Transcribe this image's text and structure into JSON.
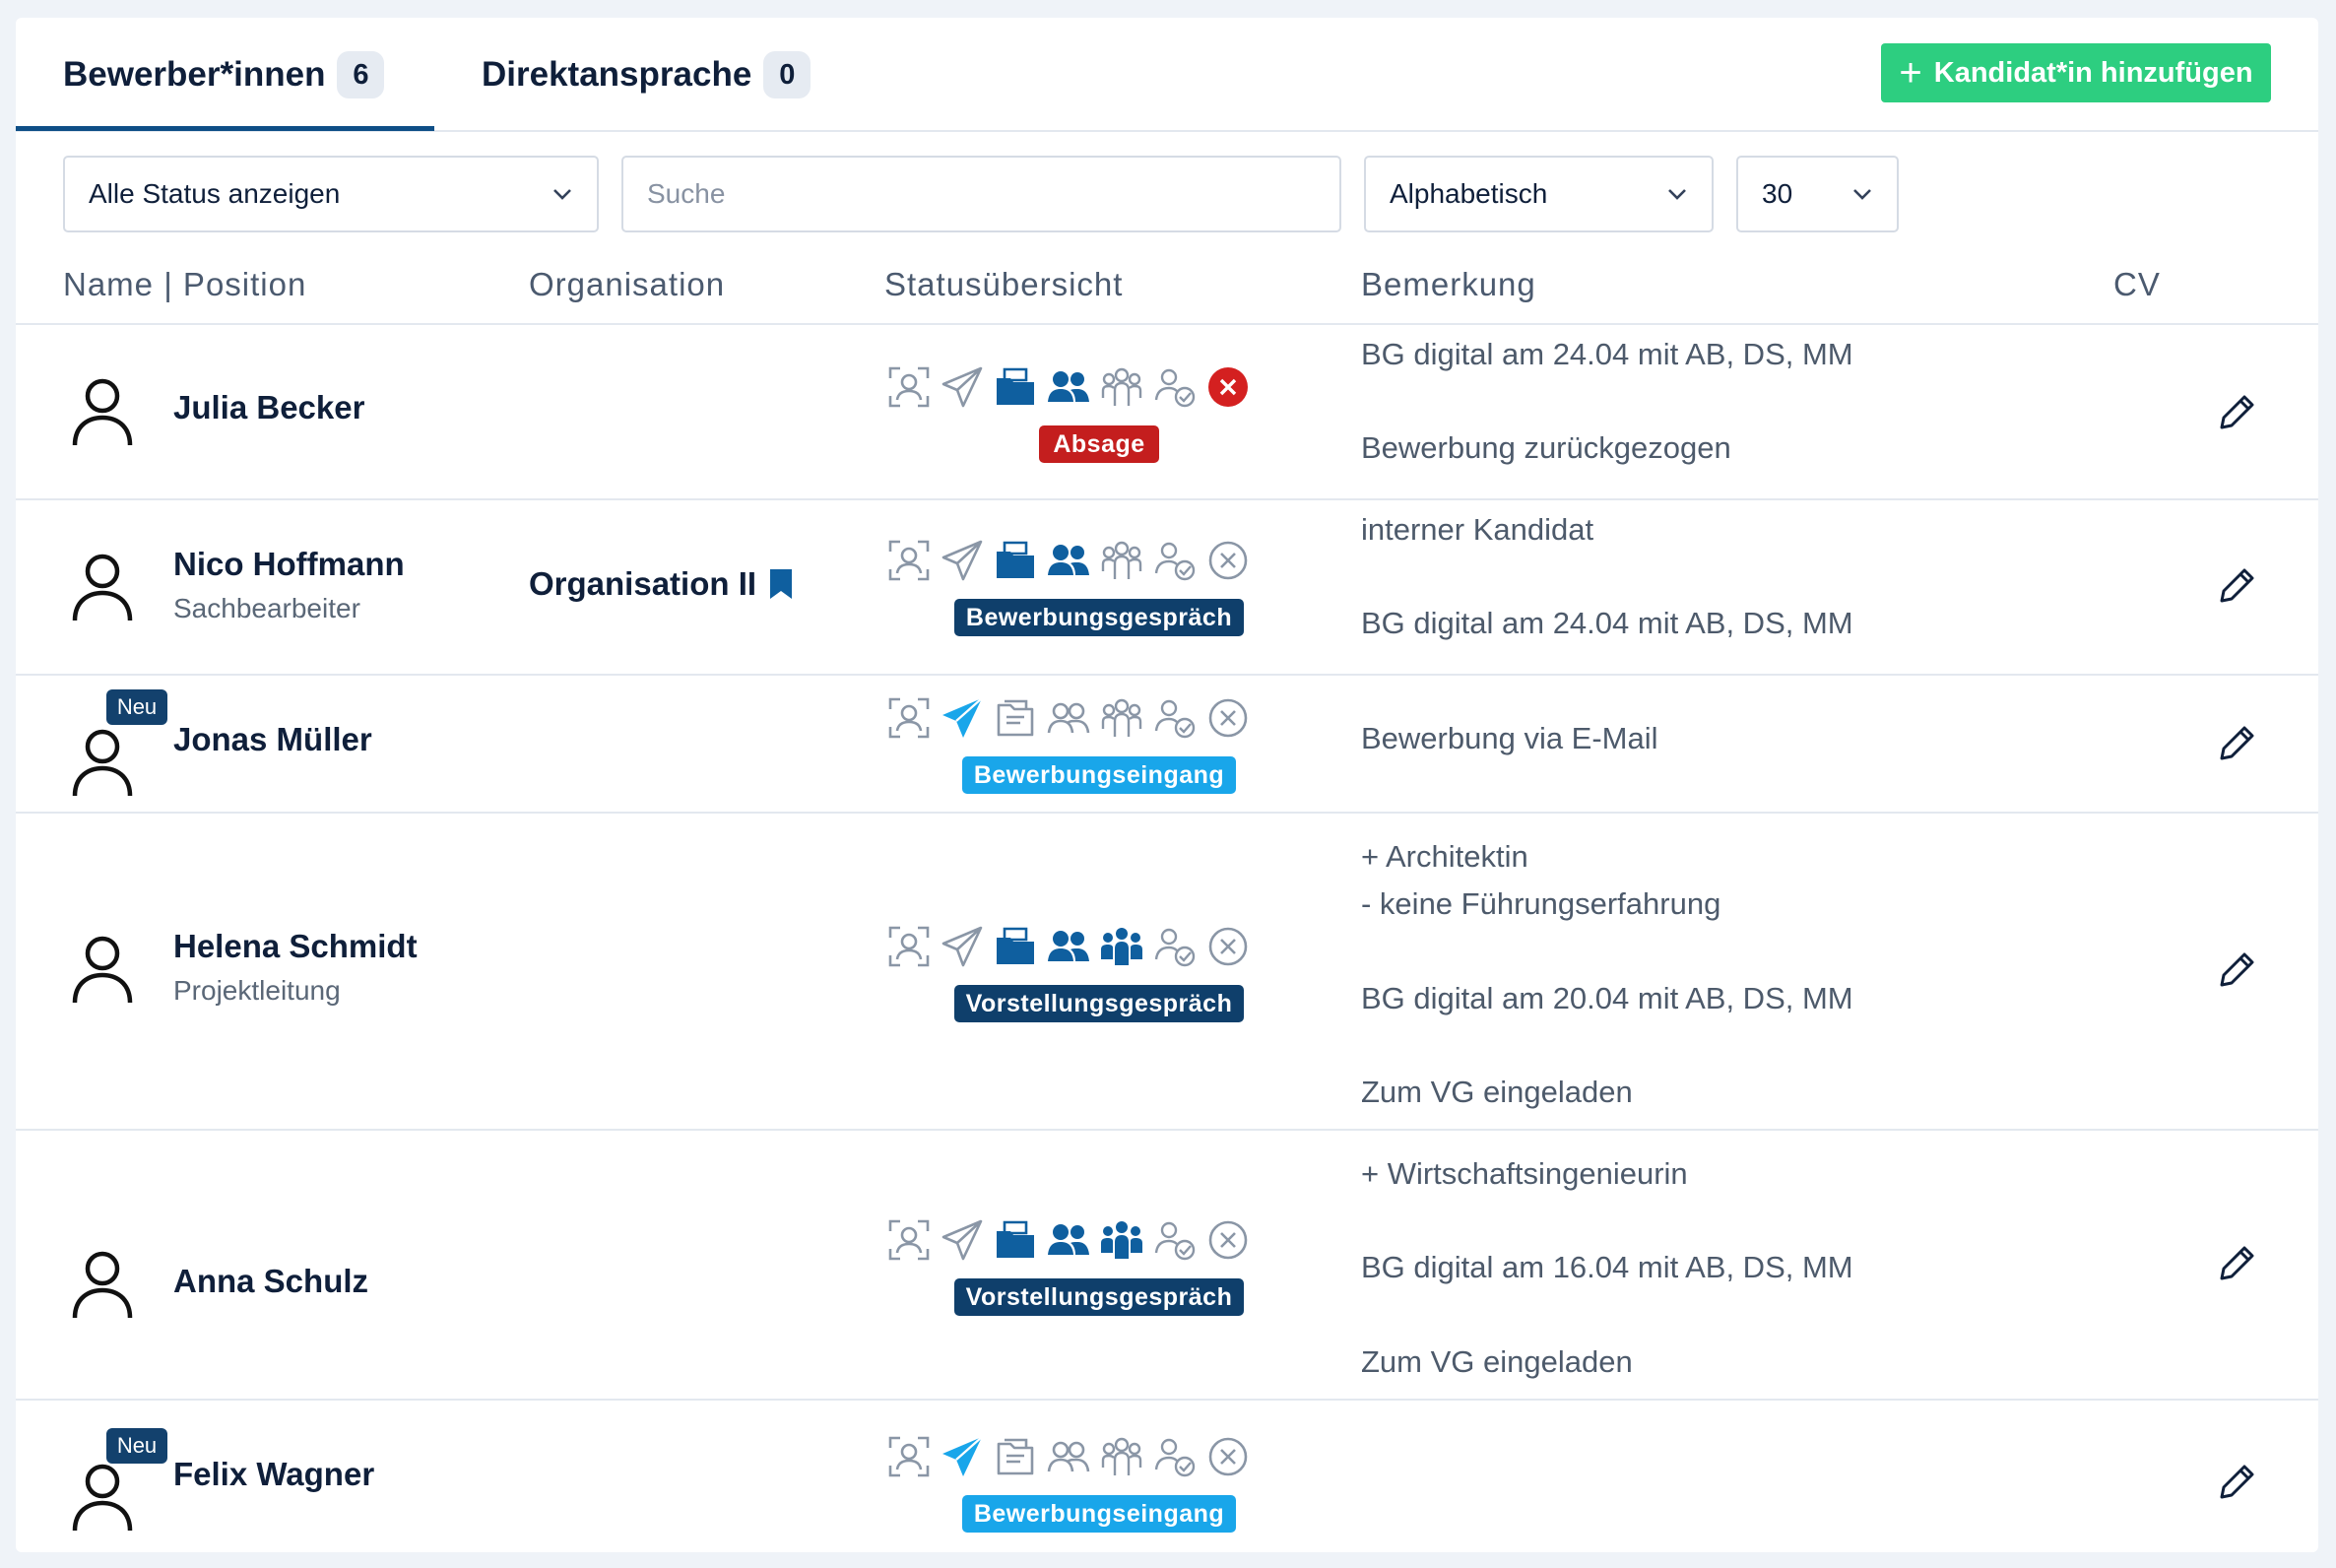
{
  "tabs": [
    {
      "label": "Bewerber*innen",
      "count": "6"
    },
    {
      "label": "Direktansprache",
      "count": "0"
    }
  ],
  "add_button": {
    "label": "Kandidat*in hinzufügen"
  },
  "filters": {
    "status": "Alle Status anzeigen",
    "search_placeholder": "Suche",
    "sort": "Alphabetisch",
    "per_page": "30"
  },
  "columns": {
    "name": "Name | Position",
    "org": "Organisation",
    "status": "Statusübersicht",
    "note": "Bemerkung",
    "cv": "CV"
  },
  "new_badge": "Neu",
  "colors": {
    "accent": "#0e4e86",
    "success": "#2dce80",
    "rejected": "#c41e1e",
    "active_step": "#0f5f9f",
    "inactive_step": "#8a96a6"
  },
  "rows": [
    {
      "name": "Julia Becker",
      "position": "",
      "organisation": "",
      "status": "Absage",
      "notes": [
        "BG digital am 24.04 mit AB, DS, MM",
        "",
        "Bewerbung zurückgezogen"
      ]
    },
    {
      "name": "Nico Hoffmann",
      "position": "Sachbearbeiter",
      "organisation": "Organisation II",
      "status": "Bewerbungsgespräch",
      "notes": [
        "interner Kandidat",
        "",
        "BG digital am 24.04 mit AB, DS, MM"
      ]
    },
    {
      "name": "Jonas Müller",
      "position": "",
      "organisation": "",
      "status": "Bewerbungseingang",
      "notes": [
        "Bewerbung via E-Mail"
      ]
    },
    {
      "name": "Helena Schmidt",
      "position": "Projektleitung",
      "organisation": "",
      "status": "Vorstellungsgespräch",
      "notes": [
        "+ Architektin",
        "- keine Führungserfahrung",
        "",
        "BG digital am 20.04 mit AB, DS, MM",
        "",
        "Zum VG eingeladen"
      ]
    },
    {
      "name": "Anna Schulz",
      "position": "",
      "organisation": "",
      "status": "Vorstellungsgespräch",
      "notes": [
        "+ Wirtschaftsingenieurin",
        "",
        "BG digital am 16.04 mit AB, DS, MM",
        "",
        "Zum VG eingeladen"
      ]
    },
    {
      "name": "Felix Wagner",
      "position": "",
      "organisation": "",
      "status": "Bewerbungseingang",
      "notes": []
    }
  ]
}
